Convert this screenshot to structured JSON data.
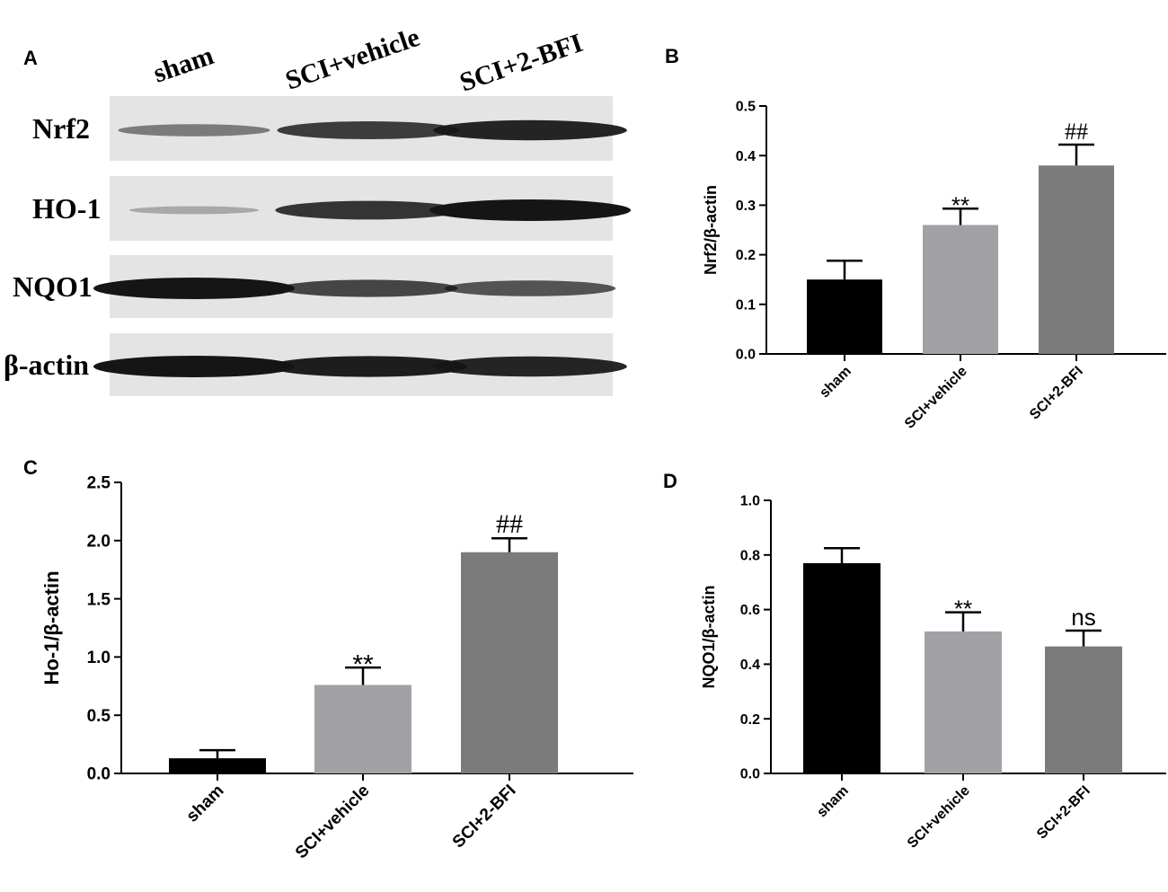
{
  "colors": {
    "sham": "#000000",
    "vehicle": "#a2a2a6",
    "bfi": "#7b7b7b",
    "blot_bg": "#e4e4e4",
    "band": "#151515"
  },
  "blot": {
    "letter": "A",
    "lanes": [
      "sham",
      "SCI+vehicle",
      "SCI+2-BFI"
    ],
    "rows": [
      {
        "protein": "Nrf2",
        "intensity": [
          0.35,
          0.75,
          0.9
        ]
      },
      {
        "protein": "HO-1",
        "intensity": [
          0.05,
          0.8,
          1.0
        ]
      },
      {
        "protein": "NQO1",
        "intensity": [
          1.0,
          0.7,
          0.6
        ]
      },
      {
        "protein": "β-actin",
        "intensity": [
          1.0,
          0.95,
          0.9
        ]
      }
    ]
  },
  "chart_data": [
    {
      "panel": "B",
      "type": "bar",
      "categories": [
        "sham",
        "SCI+vehicle",
        "SCI+2-BFI"
      ],
      "values": [
        0.15,
        0.26,
        0.38
      ],
      "errors": [
        0.038,
        0.033,
        0.042
      ],
      "annotations": [
        "",
        "**",
        "##"
      ],
      "xlabel": "",
      "ylabel": "Nrf2/β-actin",
      "ylim": [
        0,
        0.5
      ],
      "yticks": [
        "0.0",
        "0.1",
        "0.2",
        "0.3",
        "0.4",
        "0.5"
      ]
    },
    {
      "panel": "C",
      "type": "bar",
      "categories": [
        "sham",
        "SCI+vehicle",
        "SCI+2-BFI"
      ],
      "values": [
        0.13,
        0.76,
        1.9
      ],
      "errors": [
        0.07,
        0.15,
        0.12
      ],
      "annotations": [
        "",
        "**",
        "##"
      ],
      "xlabel": "",
      "ylabel": "Ho-1/β-actin",
      "ylim": [
        0,
        2.5
      ],
      "yticks": [
        "0.0",
        "0.5",
        "1.0",
        "1.5",
        "2.0",
        "2.5"
      ]
    },
    {
      "panel": "D",
      "type": "bar",
      "categories": [
        "sham",
        "SCI+vehicle",
        "SCI+2-BFI"
      ],
      "values": [
        0.77,
        0.52,
        0.465
      ],
      "errors": [
        0.055,
        0.07,
        0.058
      ],
      "annotations": [
        "",
        "**",
        "ns"
      ],
      "xlabel": "",
      "ylabel": "NQO1/β-actin",
      "ylim": [
        0,
        1.0
      ],
      "yticks": [
        "0.0",
        "0.2",
        "0.4",
        "0.6",
        "0.8",
        "1.0"
      ]
    }
  ]
}
